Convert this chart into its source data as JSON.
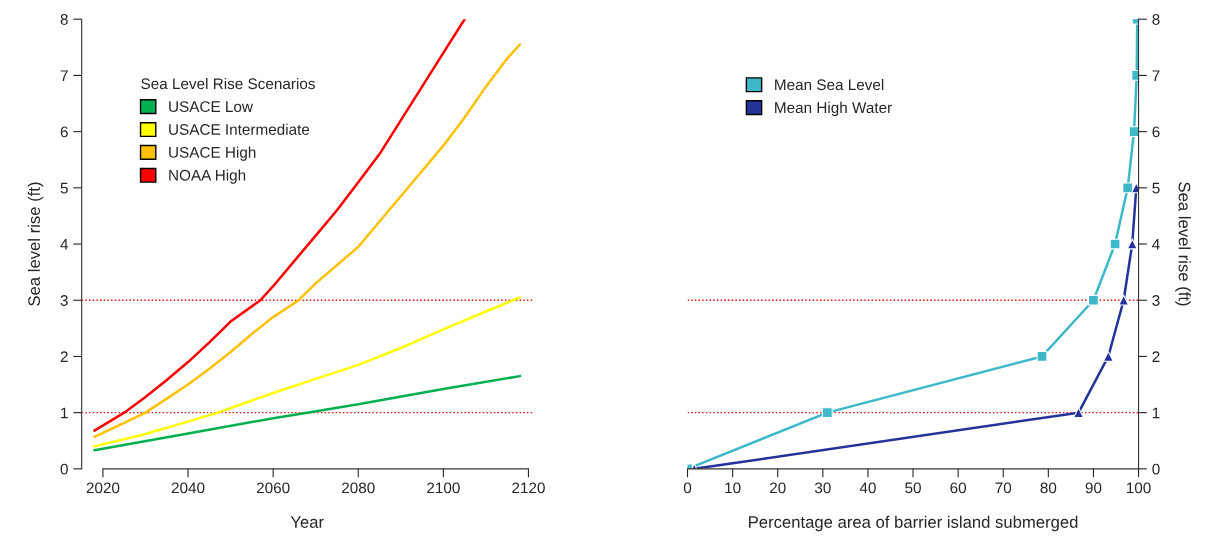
{
  "chart_data": [
    {
      "type": "line",
      "xlabel": "Year",
      "ylabel": "Sea level rise (ft)",
      "legend_title": "Sea Level Rise Scenarios",
      "legend": "top left",
      "xlim": [
        2015,
        2121
      ],
      "xticks": [
        2020,
        2040,
        2060,
        2080,
        2100,
        2120
      ],
      "ylim": [
        0,
        8
      ],
      "yticks": [
        0,
        1,
        2,
        3,
        4,
        5,
        6,
        7,
        8
      ],
      "grid": false,
      "series": [
        {
          "name": "USACE Low",
          "color": "#00b050",
          "x": [
            2018,
            2040,
            2060,
            2068,
            2080,
            2100,
            2118
          ],
          "values": [
            0.33,
            0.63,
            0.9,
            1.0,
            1.15,
            1.42,
            1.65
          ]
        },
        {
          "name": "USACE Intermediate",
          "color": "#ffff00",
          "x": [
            2018,
            2030,
            2040,
            2047,
            2060,
            2070,
            2080,
            2090,
            2100,
            2110,
            2118
          ],
          "values": [
            0.4,
            0.62,
            0.84,
            1.0,
            1.35,
            1.6,
            1.85,
            2.15,
            2.48,
            2.8,
            3.05
          ]
        },
        {
          "name": "USACE High",
          "color": "#ffc000",
          "x": [
            2018,
            2025,
            2030,
            2035,
            2040,
            2045,
            2050,
            2055,
            2060,
            2066,
            2070,
            2080,
            2085,
            2090,
            2100,
            2105,
            2110,
            2115,
            2118
          ],
          "values": [
            0.57,
            0.82,
            1.0,
            1.25,
            1.5,
            1.78,
            2.08,
            2.4,
            2.7,
            3.0,
            3.3,
            3.95,
            4.4,
            4.85,
            5.75,
            6.25,
            6.8,
            7.3,
            7.55
          ]
        },
        {
          "name": "NOAA High",
          "color": "#ff0000",
          "x": [
            2018,
            2025,
            2030,
            2035,
            2040,
            2045,
            2050,
            2057,
            2060,
            2065,
            2070,
            2075,
            2080,
            2085,
            2090,
            2095,
            2100,
            2105
          ],
          "values": [
            0.68,
            1.0,
            1.28,
            1.58,
            1.9,
            2.25,
            2.62,
            3.0,
            3.25,
            3.7,
            4.15,
            4.6,
            5.1,
            5.6,
            6.2,
            6.8,
            7.4,
            8.0
          ]
        }
      ],
      "ref_lines": [
        {
          "axis": "y",
          "value": 1,
          "color": "#ff0000",
          "line_style": "dotted"
        },
        {
          "axis": "y",
          "value": 3,
          "color": "#ff0000",
          "line_style": "dotted"
        }
      ]
    },
    {
      "type": "line",
      "xlabel": "Percentage area of barrier island submerged",
      "ylabel": "Sea level rise (ft)",
      "legend": "top left",
      "xlim": [
        0,
        100
      ],
      "xticks": [
        0,
        10,
        20,
        30,
        40,
        50,
        60,
        70,
        80,
        90,
        100
      ],
      "ylim": [
        0,
        8
      ],
      "yticks": [
        0,
        1,
        2,
        3,
        4,
        5,
        6,
        7,
        8
      ],
      "grid": false,
      "series": [
        {
          "name": "Mean Sea Level",
          "color": "#3cb8c8",
          "marker": "square",
          "x": [
            0,
            31,
            78.6,
            90,
            94.8,
            97.6,
            99,
            99.6,
            99.7
          ],
          "values": [
            0,
            1,
            2,
            3,
            4,
            5,
            6,
            7,
            8
          ]
        },
        {
          "name": "Mean High Water",
          "color": "#233399",
          "marker": "triangle",
          "x": [
            1.5,
            86.7,
            93.3,
            96.7,
            98.6,
            99.5
          ],
          "values": [
            0,
            1,
            2,
            3,
            4,
            5
          ]
        }
      ],
      "ref_lines": [
        {
          "axis": "y",
          "value": 1,
          "color": "#ff0000",
          "line_style": "dotted"
        },
        {
          "axis": "y",
          "value": 3,
          "color": "#ff0000",
          "line_style": "dotted"
        }
      ]
    }
  ]
}
